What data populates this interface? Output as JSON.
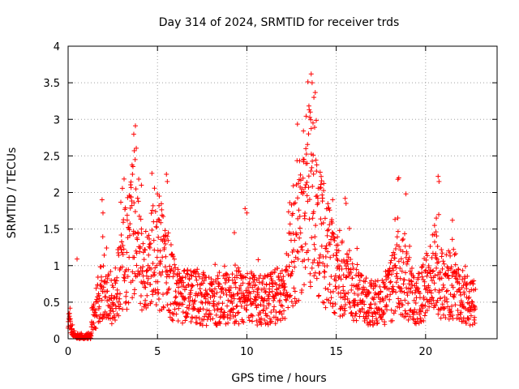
{
  "chart_data": {
    "type": "scatter",
    "title": "Day 314 of 2024, SRMTID for receiver trds",
    "xlabel": "GPS time / hours",
    "ylabel": "SRMTID / TECUs",
    "xlim": [
      0,
      24
    ],
    "ylim": [
      0,
      4
    ],
    "xticks": [
      0,
      5,
      10,
      15,
      20
    ],
    "xtick_labels": [
      "0",
      "5",
      "10",
      "15",
      "20"
    ],
    "yticks": [
      0,
      0.5,
      1,
      1.5,
      2,
      2.5,
      3,
      3.5,
      4
    ],
    "ytick_labels": [
      "0",
      "0.5",
      "1",
      "1.5",
      "2",
      "2.5",
      "3",
      "3.5",
      "4"
    ],
    "grid": true,
    "marker": "+",
    "color": "#ff0000",
    "series": [
      {
        "name": "SRMTID",
        "profile": [
          [
            0.0,
            0.3
          ],
          [
            0.2,
            0.1
          ],
          [
            0.5,
            0.05
          ],
          [
            1.0,
            0.05
          ],
          [
            1.5,
            0.35
          ],
          [
            2.0,
            0.8
          ],
          [
            2.5,
            0.5
          ],
          [
            3.0,
            0.9
          ],
          [
            3.5,
            1.3
          ],
          [
            3.8,
            1.6
          ],
          [
            4.2,
            0.8
          ],
          [
            4.8,
            1.1
          ],
          [
            5.3,
            1.1
          ],
          [
            5.6,
            0.9
          ],
          [
            6.0,
            0.6
          ],
          [
            7.0,
            0.55
          ],
          [
            8.0,
            0.5
          ],
          [
            9.0,
            0.55
          ],
          [
            10.0,
            0.55
          ],
          [
            11.0,
            0.5
          ],
          [
            12.0,
            0.6
          ],
          [
            12.5,
            1.0
          ],
          [
            13.0,
            1.6
          ],
          [
            13.5,
            2.0
          ],
          [
            14.0,
            1.5
          ],
          [
            14.5,
            1.1
          ],
          [
            15.0,
            0.9
          ],
          [
            15.5,
            0.8
          ],
          [
            16.0,
            0.65
          ],
          [
            16.5,
            0.5
          ],
          [
            17.0,
            0.5
          ],
          [
            17.5,
            0.45
          ],
          [
            18.0,
            0.6
          ],
          [
            18.5,
            0.9
          ],
          [
            19.0,
            0.7
          ],
          [
            19.5,
            0.5
          ],
          [
            20.0,
            0.7
          ],
          [
            20.5,
            0.9
          ],
          [
            21.0,
            0.7
          ],
          [
            21.5,
            0.75
          ],
          [
            22.0,
            0.55
          ],
          [
            22.5,
            0.5
          ],
          [
            22.8,
            0.45
          ]
        ],
        "spikes": [
          [
            3.7,
            2.57
          ],
          [
            3.75,
            2.45
          ],
          [
            3.6,
            2.25
          ],
          [
            1.9,
            1.9
          ],
          [
            1.95,
            1.72
          ],
          [
            5.5,
            2.25
          ],
          [
            5.55,
            2.15
          ],
          [
            5.0,
            1.98
          ],
          [
            5.1,
            1.95
          ],
          [
            4.1,
            2.1
          ],
          [
            0.5,
            1.09
          ],
          [
            13.6,
            3.62
          ],
          [
            13.65,
            3.5
          ],
          [
            13.75,
            3.3
          ],
          [
            13.55,
            3.1
          ],
          [
            13.7,
            2.95
          ],
          [
            13.45,
            2.8
          ],
          [
            13.3,
            2.6
          ],
          [
            13.2,
            2.45
          ],
          [
            9.9,
            1.78
          ],
          [
            10.0,
            1.72
          ],
          [
            9.3,
            1.45
          ],
          [
            18.5,
            2.2
          ],
          [
            18.45,
            2.18
          ],
          [
            18.9,
            1.98
          ],
          [
            20.7,
            2.22
          ],
          [
            20.75,
            2.15
          ],
          [
            20.6,
            1.65
          ],
          [
            20.5,
            1.55
          ],
          [
            21.5,
            1.62
          ],
          [
            15.5,
            1.92
          ],
          [
            15.55,
            1.85
          ],
          [
            14.8,
            1.9
          ],
          [
            12.5,
            1.83
          ],
          [
            12.4,
            1.86
          ]
        ]
      }
    ]
  }
}
